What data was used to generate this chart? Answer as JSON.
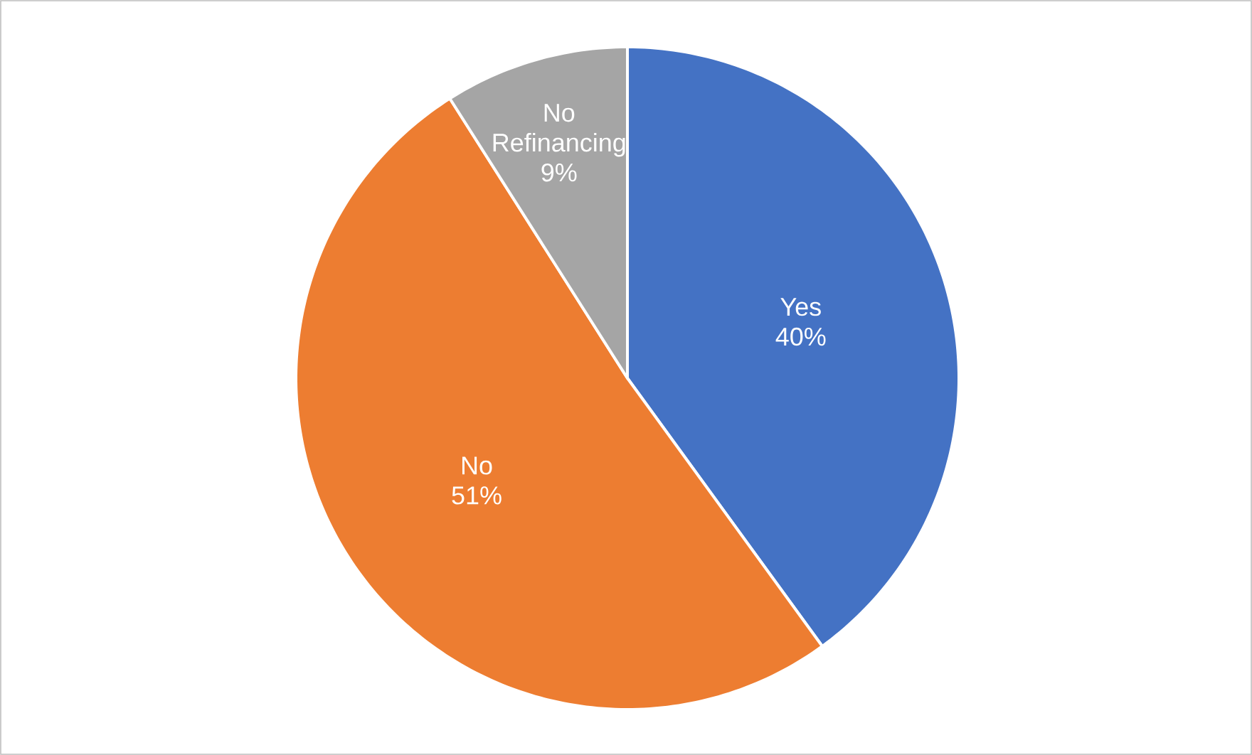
{
  "chart_data": {
    "type": "pie",
    "categories": [
      "Yes",
      "No",
      "No Refinancing"
    ],
    "values": [
      40,
      51,
      9
    ],
    "value_labels": [
      "40%",
      "51%",
      "9%"
    ],
    "colors": [
      "#4472c4",
      "#ed7d31",
      "#a5a5a5"
    ]
  }
}
